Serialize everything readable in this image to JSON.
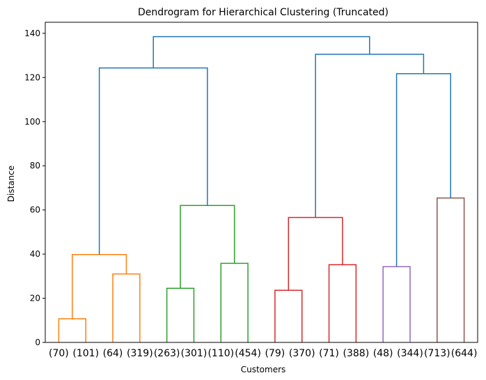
{
  "chart_data": {
    "type": "dendrogram",
    "title": "Dendrogram for Hierarchical Clustering (Truncated)",
    "xlabel": "Customers",
    "ylabel": "Distance",
    "ylim": [
      0,
      145
    ],
    "yticks": [
      0,
      20,
      40,
      60,
      80,
      100,
      120,
      140
    ],
    "grid": false,
    "leaves": [
      "(70)",
      "(101)",
      "(64)",
      "(319)",
      "(263)",
      "(301)",
      "(110)",
      "(454)",
      "(79)",
      "(370)",
      "(71)",
      "(388)",
      "(48)",
      "(344)",
      "(713)",
      "(644)"
    ],
    "colors": {
      "orange": "#ff7f0e",
      "green": "#2ca02c",
      "red": "#d62728",
      "purple": "#9467bd",
      "brown": "#8c564b",
      "blue": "#1f77b4"
    },
    "links": [
      {
        "id": "L0",
        "left": "leaf:0",
        "right": "leaf:1",
        "height": 10.7,
        "color": "orange"
      },
      {
        "id": "L1",
        "left": "leaf:2",
        "right": "leaf:3",
        "height": 31.0,
        "color": "orange"
      },
      {
        "id": "L2",
        "left": "L0",
        "right": "L1",
        "height": 39.8,
        "color": "orange"
      },
      {
        "id": "L3",
        "left": "leaf:4",
        "right": "leaf:5",
        "height": 24.5,
        "color": "green"
      },
      {
        "id": "L4",
        "left": "leaf:6",
        "right": "leaf:7",
        "height": 35.8,
        "color": "green"
      },
      {
        "id": "L5",
        "left": "L3",
        "right": "L4",
        "height": 62.0,
        "color": "green"
      },
      {
        "id": "L6",
        "left": "L2",
        "right": "L5",
        "height": 124.3,
        "color": "blue"
      },
      {
        "id": "L7",
        "left": "leaf:8",
        "right": "leaf:9",
        "height": 23.6,
        "color": "red"
      },
      {
        "id": "L8",
        "left": "leaf:10",
        "right": "leaf:11",
        "height": 35.2,
        "color": "red"
      },
      {
        "id": "L9",
        "left": "L7",
        "right": "L8",
        "height": 56.6,
        "color": "red"
      },
      {
        "id": "L10",
        "left": "leaf:12",
        "right": "leaf:13",
        "height": 34.3,
        "color": "purple"
      },
      {
        "id": "L11",
        "left": "leaf:14",
        "right": "leaf:15",
        "height": 65.4,
        "color": "brown"
      },
      {
        "id": "L12",
        "left": "L10",
        "right": "L11",
        "height": 121.7,
        "color": "blue"
      },
      {
        "id": "L13",
        "left": "L9",
        "right": "L12",
        "height": 130.5,
        "color": "blue"
      },
      {
        "id": "L14",
        "left": "L6",
        "right": "L13",
        "height": 138.5,
        "color": "blue"
      }
    ]
  }
}
